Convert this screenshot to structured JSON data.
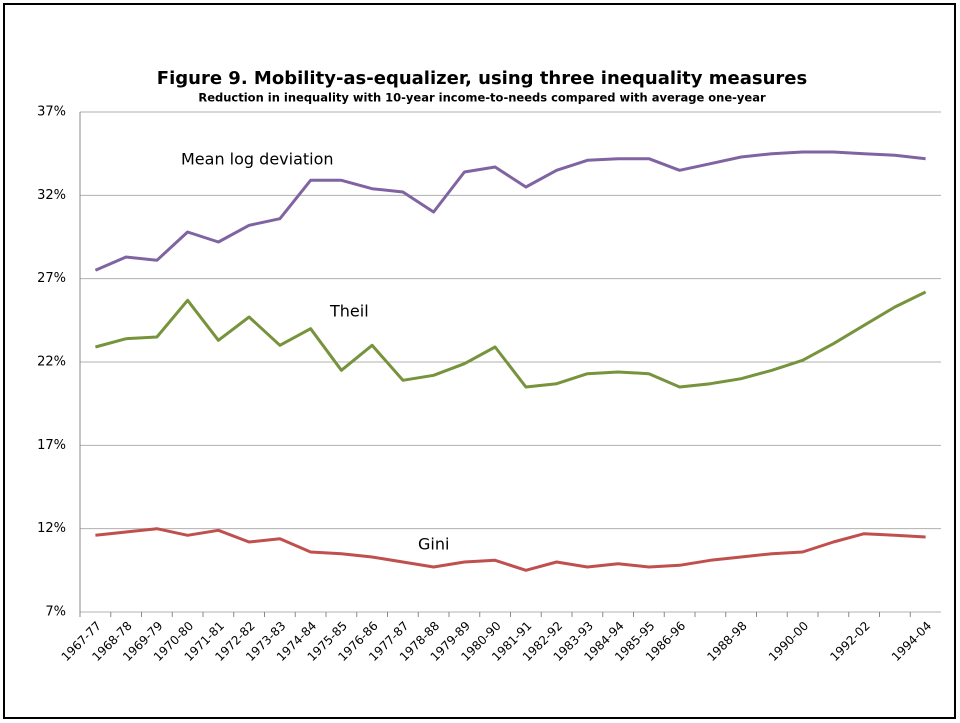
{
  "chart_data": {
    "type": "line",
    "title": "Figure 9. Mobility-as-equalizer, using three inequality measures",
    "subtitle": "Reduction in inequality with 10-year income-to-needs compared with average one-year",
    "categories": [
      "1967-77",
      "1968-78",
      "1969-79",
      "1970-80",
      "1971-81",
      "1972-82",
      "1973-83",
      "1974-84",
      "1975-85",
      "1976-86",
      "1977-87",
      "1978-88",
      "1979-89",
      "1980-90",
      "1981-91",
      "1982-92",
      "1983-93",
      "1984-94",
      "1985-95",
      "1986-96",
      null,
      "1988-98",
      null,
      "1990-00",
      null,
      "1992-02",
      null,
      "1994-04"
    ],
    "series": [
      {
        "name": "Mean log deviation",
        "color": "#8064a2",
        "values": [
          27.5,
          28.3,
          28.1,
          29.8,
          29.2,
          30.2,
          30.6,
          32.9,
          32.9,
          32.4,
          32.2,
          31.0,
          33.4,
          33.7,
          32.5,
          33.5,
          34.1,
          34.2,
          34.2,
          33.5,
          33.9,
          34.3,
          34.5,
          34.6,
          34.6,
          34.5,
          34.4,
          34.2
        ]
      },
      {
        "name": "Theil",
        "color": "#77933c",
        "values": [
          22.9,
          23.4,
          23.5,
          25.7,
          23.3,
          24.7,
          23.0,
          24.0,
          21.5,
          23.0,
          20.9,
          21.2,
          21.9,
          22.9,
          20.5,
          20.7,
          21.3,
          21.4,
          21.3,
          20.5,
          20.7,
          21.0,
          21.5,
          22.1,
          23.1,
          24.2,
          25.3,
          26.2
        ]
      },
      {
        "name": "Gini",
        "color": "#c0504d",
        "values": [
          11.6,
          11.8,
          12.0,
          11.6,
          11.9,
          11.2,
          11.4,
          10.6,
          10.5,
          10.3,
          10.0,
          9.7,
          10.0,
          10.1,
          9.5,
          10.0,
          9.7,
          9.9,
          9.7,
          9.8,
          10.1,
          10.3,
          10.5,
          10.6,
          11.2,
          11.7,
          11.6,
          11.5
        ]
      }
    ],
    "ylim": [
      7,
      37
    ],
    "yticks": [
      {
        "value": 7,
        "label": "7%"
      },
      {
        "value": 12,
        "label": "12%"
      },
      {
        "value": 17,
        "label": "17%"
      },
      {
        "value": 22,
        "label": "22%"
      },
      {
        "value": 27,
        "label": "27%"
      },
      {
        "value": 32,
        "label": "32%"
      },
      {
        "value": 37,
        "label": "37%"
      }
    ],
    "grid": true
  }
}
